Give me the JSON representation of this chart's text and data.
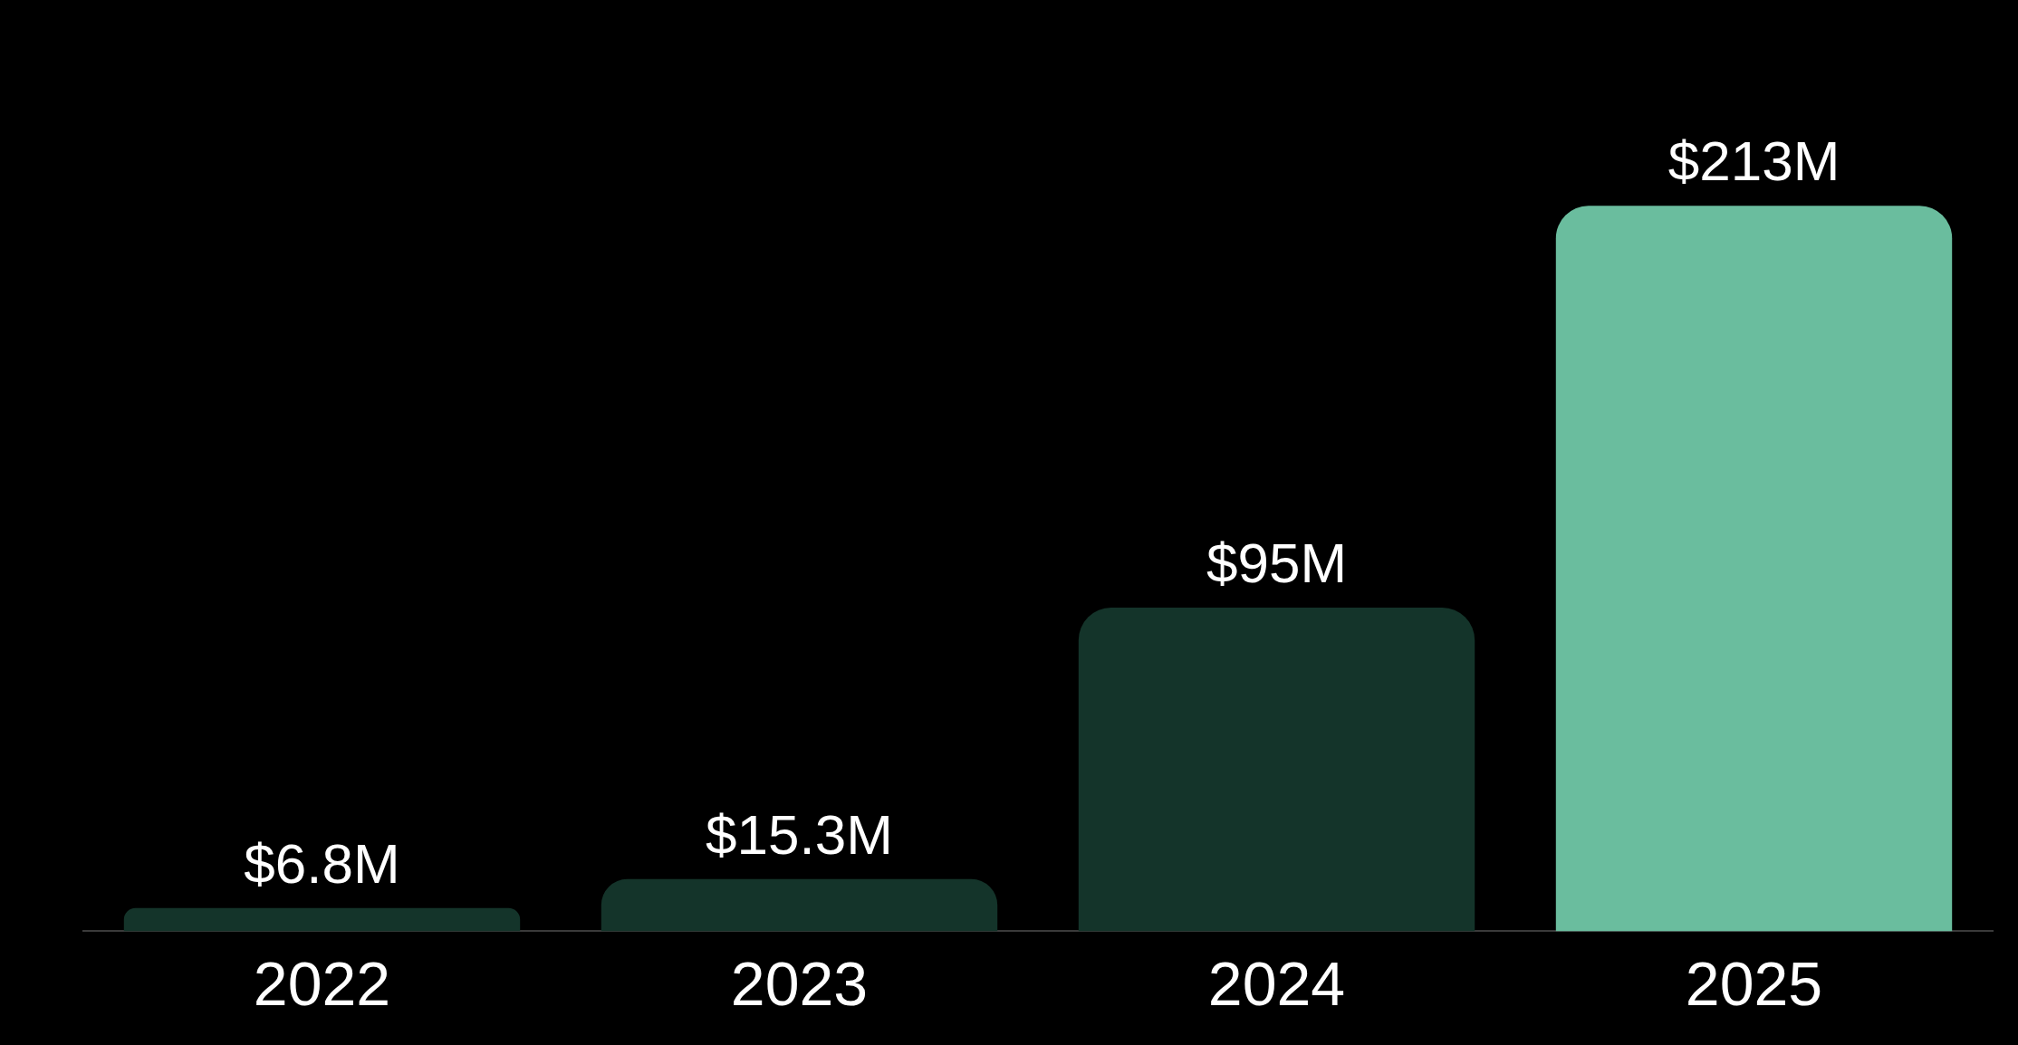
{
  "chart_data": {
    "type": "bar",
    "categories": [
      "2022",
      "2023",
      "2024",
      "2025"
    ],
    "values": [
      6.8,
      15.3,
      95,
      213
    ],
    "value_labels": [
      "$6.8M",
      "$15.3M",
      "$95M",
      "$213M"
    ],
    "colors": [
      "#14342a",
      "#14342a",
      "#14342a",
      "#6abd9e"
    ]
  }
}
